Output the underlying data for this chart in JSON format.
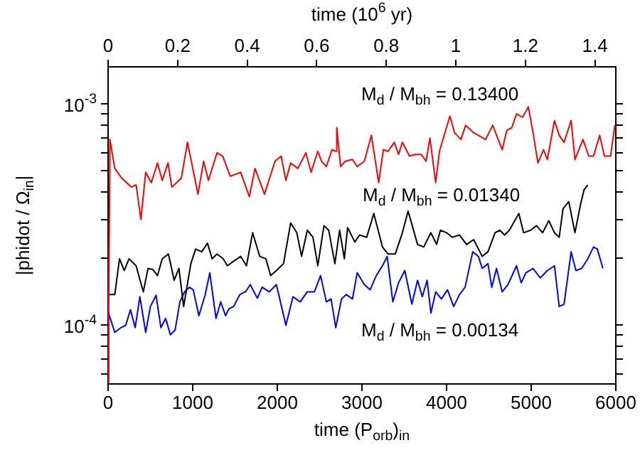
{
  "chart_data": {
    "type": "line",
    "log": "y",
    "legend": false,
    "grid": false,
    "xlabel": "time (P$_{orb}$)$_{in}$",
    "x2label": "time (10$^{6}$ yr)",
    "ylabel": "|phidot / Ω$_{in}$|",
    "xlim": [
      0,
      6000
    ],
    "xticks": [
      0,
      1000,
      2000,
      3000,
      4000,
      5000,
      6000
    ],
    "x2lim": [
      0,
      1.46
    ],
    "x2ticks": [
      0,
      0.2,
      0.4,
      0.6,
      0.8,
      1,
      1.2,
      1.4
    ],
    "ylim": [
      5.4e-05,
      0.00147
    ],
    "yticks": [
      {
        "value": 6e-05,
        "label": null
      },
      {
        "value": 7e-05,
        "label": null
      },
      {
        "value": 8e-05,
        "label": null
      },
      {
        "value": 9e-05,
        "label": null
      },
      {
        "value": 0.0001,
        "label": "10$^{-4}$"
      },
      {
        "value": 0.0002,
        "label": null
      },
      {
        "value": 0.0003,
        "label": null
      },
      {
        "value": 0.0004,
        "label": null
      },
      {
        "value": 0.0005,
        "label": null
      },
      {
        "value": 0.0006,
        "label": null
      },
      {
        "value": 0.0007,
        "label": null
      },
      {
        "value": 0.0008,
        "label": null
      },
      {
        "value": 0.0009,
        "label": null
      },
      {
        "value": 0.001,
        "label": "10$^{-3}$"
      }
    ],
    "series": [
      {
        "name": "M$_{d}$ / M$_{bh}$ = 0.13400",
        "color": "#ff0000",
        "x": [
          0,
          22,
          79,
          163,
          275,
          331,
          388,
          444,
          511,
          584,
          640,
          708,
          753,
          865,
          938,
          1062,
          1129,
          1185,
          1287,
          1354,
          1444,
          1567,
          1669,
          1736,
          1848,
          1972,
          2045,
          2101,
          2157,
          2242,
          2337,
          2399,
          2478,
          2522,
          2579,
          2646,
          2691,
          2702,
          2747,
          2803,
          2888,
          2944,
          3028,
          3112,
          3197,
          3253,
          3309,
          3382,
          3433,
          3478,
          3562,
          3629,
          3702,
          3758,
          3803,
          3871,
          3916,
          4039,
          4095,
          4169,
          4225,
          4320,
          4461,
          4545,
          4657,
          4713,
          4770,
          4826,
          4899,
          4966,
          5022,
          5079,
          5146,
          5191,
          5275,
          5331,
          5388,
          5472,
          5517,
          5612,
          5680,
          5736,
          5809,
          5865,
          5938,
          5989
        ],
        "values": [
          5.5e-05,
          0.00069,
          0.00051,
          0.00046,
          0.00042,
          0.00043,
          0.0003,
          0.00049,
          0.00044,
          0.00054,
          0.00045,
          0.00054,
          0.00042,
          0.00046,
          0.00067,
          0.00039,
          0.00055,
          0.00045,
          0.0006,
          0.00058,
          0.00047,
          0.00049,
          0.00038,
          0.00051,
          0.00039,
          0.00055,
          0.00058,
          0.00045,
          0.00054,
          0.00051,
          0.0006,
          0.00049,
          0.00061,
          0.00055,
          0.00052,
          0.00062,
          0.00061,
          0.00078,
          0.00052,
          0.00055,
          0.00056,
          0.00052,
          0.00055,
          0.00072,
          0.00044,
          0.00062,
          0.00061,
          0.00067,
          0.00059,
          0.00067,
          0.00058,
          0.00059,
          0.00059,
          0.00055,
          0.0007,
          0.00044,
          0.00061,
          0.00088,
          0.00074,
          0.00069,
          0.0008,
          0.00074,
          0.00069,
          0.0008,
          0.00062,
          0.00076,
          0.00078,
          0.0009,
          0.00087,
          0.00097,
          0.00074,
          0.00054,
          0.00062,
          0.00056,
          0.00084,
          0.00072,
          0.00067,
          0.00084,
          0.00056,
          0.00069,
          0.00058,
          0.00058,
          0.00072,
          0.00058,
          0.00058,
          0.0008
        ]
      },
      {
        "name": "M$_{d}$ / M$_{bh}$ = 0.01340",
        "color": "#000000",
        "x": [
          6,
          79,
          135,
          191,
          247,
          331,
          416,
          472,
          528,
          584,
          640,
          713,
          781,
          837,
          893,
          978,
          1034,
          1107,
          1174,
          1230,
          1287,
          1360,
          1410,
          1483,
          1567,
          1635,
          1708,
          1792,
          1865,
          1921,
          1989,
          2073,
          2157,
          2230,
          2287,
          2354,
          2421,
          2478,
          2551,
          2607,
          2680,
          2736,
          2792,
          2831,
          2916,
          2972,
          3056,
          3140,
          3242,
          3309,
          3393,
          3478,
          3545,
          3657,
          3730,
          3815,
          3882,
          3927,
          4000,
          4067,
          4152,
          4236,
          4320,
          4421,
          4489,
          4573,
          4629,
          4685,
          4742,
          4854,
          4910,
          4994,
          5062,
          5135,
          5208,
          5275,
          5331,
          5376,
          5444,
          5517,
          5584,
          5624,
          5669
        ],
        "values": [
          0.000137,
          0.000137,
          0.000199,
          0.000176,
          0.000199,
          0.000185,
          0.000141,
          0.00018,
          0.000178,
          0.000167,
          0.000199,
          0.000209,
          0.000159,
          0.00018,
          0.000121,
          0.000189,
          0.00022,
          0.000214,
          0.000234,
          0.000199,
          0.000209,
          0.000199,
          0.000185,
          0.000194,
          0.000204,
          0.000185,
          0.000261,
          0.000204,
          0.000199,
          0.000167,
          0.000176,
          0.000189,
          0.000289,
          0.000261,
          0.000204,
          0.000268,
          0.000249,
          0.000185,
          0.000281,
          0.000268,
          0.000189,
          0.000268,
          0.000199,
          0.000275,
          0.000237,
          0.000255,
          0.000249,
          0.000319,
          0.000225,
          0.000209,
          0.000209,
          0.000261,
          0.000327,
          0.000231,
          0.000225,
          0.000261,
          0.000231,
          0.000268,
          0.000261,
          0.000249,
          0.000255,
          0.000231,
          0.000243,
          0.000204,
          0.000214,
          0.000261,
          0.000268,
          0.000255,
          0.000268,
          0.000319,
          0.000261,
          0.000268,
          0.000281,
          0.000261,
          0.000296,
          0.000261,
          0.000249,
          0.000335,
          0.000361,
          0.000261,
          0.000352,
          0.000408,
          0.000429
        ]
      },
      {
        "name": "M$_{d}$ / M$_{bh}$ = 0.00134",
        "color": "#0000ff",
        "x": [
          0,
          6,
          79,
          152,
          208,
          264,
          320,
          376,
          444,
          500,
          567,
          624,
          680,
          736,
          792,
          848,
          904,
          961,
          1006,
          1073,
          1146,
          1202,
          1275,
          1331,
          1388,
          1427,
          1483,
          1556,
          1624,
          1680,
          1764,
          1820,
          1904,
          1989,
          2101,
          2185,
          2270,
          2354,
          2438,
          2511,
          2579,
          2635,
          2691,
          2758,
          2815,
          2888,
          2944,
          3028,
          3096,
          3169,
          3242,
          3298,
          3365,
          3433,
          3506,
          3590,
          3657,
          3713,
          3770,
          3815,
          3871,
          3938,
          4011,
          4084,
          4152,
          4219,
          4309,
          4376,
          4421,
          4489,
          4534,
          4590,
          4657,
          4725,
          4826,
          4882,
          4938,
          5022,
          5107,
          5191,
          5275,
          5331,
          5388,
          5472,
          5528,
          5596,
          5669,
          5736,
          5781,
          5848
        ],
        "values": [
          5.5e-05,
          0.000113,
          9.24e-05,
          9.71e-05,
          9.95e-05,
          0.000117,
          9.71e-05,
          0.000134,
          9.24e-05,
          0.000121,
          0.000136,
          9.71e-05,
          0.000107,
          9.01e-05,
          9.47e-05,
          0.000127,
          0.000141,
          0.000148,
          0.000144,
          0.00011,
          0.000136,
          0.000172,
          0.000107,
          0.000127,
          0.00011,
          0.000118,
          0.000121,
          0.000137,
          0.000141,
          0.000152,
          0.000132,
          0.000148,
          0.000141,
          0.000152,
          9.95e-05,
          0.000134,
          0.000127,
          0.000141,
          0.000141,
          0.000167,
          0.000127,
          0.000131,
          9.71e-05,
          0.000131,
          0.000137,
          0.000131,
          0.000172,
          0.000152,
          0.000144,
          0.000167,
          0.000185,
          0.000204,
          0.000127,
          0.000155,
          0.000176,
          0.000124,
          0.000159,
          0.000134,
          0.000159,
          0.000113,
          0.000141,
          0.000131,
          0.000144,
          0.000121,
          0.000137,
          0.000148,
          0.000214,
          0.000204,
          0.00018,
          0.000189,
          0.000148,
          0.00018,
          0.000141,
          0.000152,
          0.000185,
          0.000155,
          0.000172,
          0.00018,
          0.000163,
          0.000176,
          0.000185,
          0.000121,
          0.000124,
          0.000214,
          0.000176,
          0.00018,
          0.000199,
          0.000225,
          0.00022,
          0.00018
        ]
      }
    ]
  }
}
